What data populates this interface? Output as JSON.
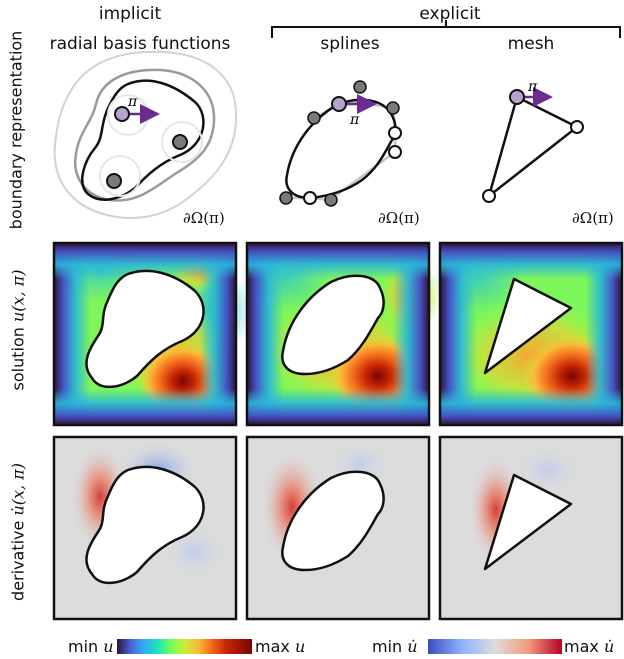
{
  "headers": {
    "implicit": "implicit",
    "rbf": "radial basis functions",
    "explicit": "explicit",
    "splines": "splines",
    "mesh": "mesh"
  },
  "row_labels": {
    "boundary": "boundary representation",
    "solution_prefix": "solution ",
    "solution_math": "u(x, π)",
    "derivative_prefix": "derivative ",
    "derivative_math": "u̇(x, π)"
  },
  "boundary_label": "∂Ω(π)",
  "param_label": "π",
  "colorbars": {
    "u_min": "min",
    "u_max": "max",
    "u_sym": "u",
    "udot_min": "min",
    "udot_max": "max",
    "udot_sym": "u̇"
  },
  "colors": {
    "param_arrow": "#6a2c91",
    "param_point": "#b8a3cf",
    "control_point": "#7a7a7a",
    "hot": "#8b0000",
    "cold_edge": "#30123b",
    "deriv_red": "#e0605a",
    "deriv_blue": "#8fb0e8",
    "deriv_bg": "#dcdcdc"
  }
}
